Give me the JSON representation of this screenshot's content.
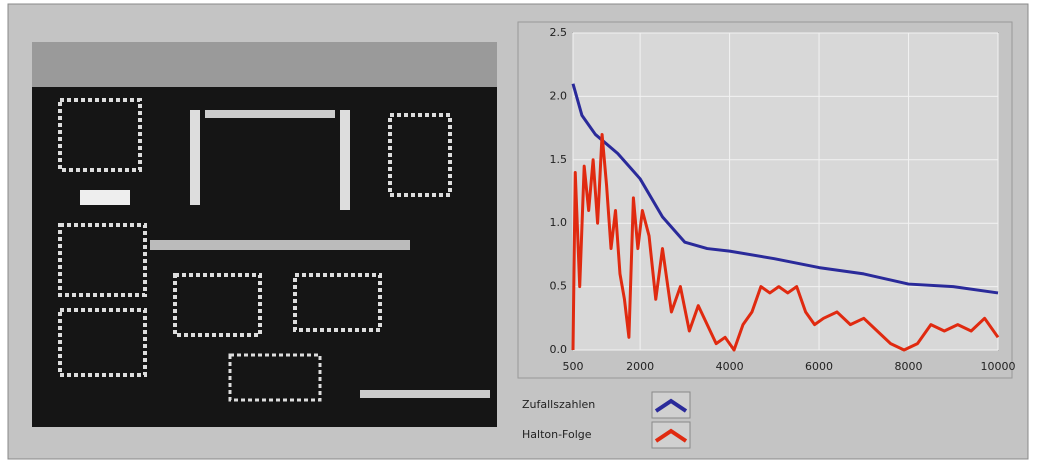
{
  "chart_data": {
    "type": "line",
    "xlim": [
      500,
      10000
    ],
    "xticks": [
      500,
      2000,
      4000,
      6000,
      8000,
      10000
    ],
    "ylim": [
      0,
      2.5
    ],
    "yticks": [
      {
        "value": 0,
        "label": "0.0"
      },
      0.5,
      {
        "value": 1,
        "label": "1.0"
      },
      1.5,
      {
        "value": 2,
        "label": "2.0"
      },
      2.5
    ],
    "grid": true,
    "series": [
      {
        "name": "Zufallszahlen",
        "color": "#2a2a9a",
        "x": [
          500,
          700,
          1000,
          1500,
          2000,
          2500,
          3000,
          3500,
          4000,
          5000,
          6000,
          7000,
          8000,
          9000,
          10000
        ],
        "values": [
          2.1,
          1.85,
          1.7,
          1.55,
          1.35,
          1.05,
          0.85,
          0.8,
          0.78,
          0.72,
          0.65,
          0.6,
          0.52,
          0.5,
          0.45
        ]
      },
      {
        "name": "Halton-Folge",
        "color": "#e02a10",
        "x": [
          500,
          550,
          650,
          750,
          850,
          950,
          1050,
          1150,
          1250,
          1350,
          1450,
          1550,
          1650,
          1750,
          1850,
          1950,
          2050,
          2200,
          2350,
          2500,
          2700,
          2900,
          3100,
          3300,
          3500,
          3700,
          3900,
          4100,
          4300,
          4500,
          4700,
          4900,
          5100,
          5300,
          5500,
          5700,
          5900,
          6100,
          6400,
          6700,
          7000,
          7300,
          7600,
          7900,
          8200,
          8500,
          8800,
          9100,
          9400,
          9700,
          10000
        ],
        "values": [
          0.0,
          1.4,
          0.5,
          1.45,
          1.1,
          1.5,
          1.0,
          1.7,
          1.3,
          0.8,
          1.1,
          0.6,
          0.4,
          0.1,
          1.2,
          0.8,
          1.1,
          0.9,
          0.4,
          0.8,
          0.3,
          0.5,
          0.15,
          0.35,
          0.2,
          0.05,
          0.1,
          0.0,
          0.2,
          0.3,
          0.5,
          0.45,
          0.5,
          0.45,
          0.5,
          0.3,
          0.2,
          0.25,
          0.3,
          0.2,
          0.25,
          0.15,
          0.05,
          0.0,
          0.05,
          0.2,
          0.15,
          0.2,
          0.15,
          0.25,
          0.1
        ]
      }
    ]
  }
}
